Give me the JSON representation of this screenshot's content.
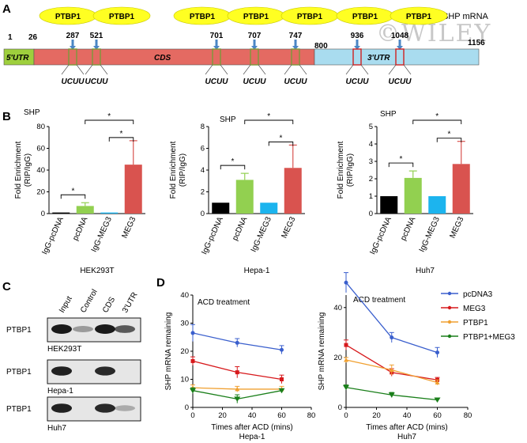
{
  "panel_a": {
    "letter": "A",
    "title": "SHP mRNA",
    "watermark": "©WILEY",
    "segments": [
      {
        "label": "5'UTR",
        "color": "#9ecf3d"
      },
      {
        "label": "CDS",
        "color": "#e46a62"
      },
      {
        "label": "3'UTR",
        "color": "#a9dcef"
      }
    ],
    "boundaries": [
      "1",
      "26",
      "800",
      "1156"
    ],
    "sites": [
      {
        "pos": "287",
        "motif": "UCUU",
        "region": "CDS"
      },
      {
        "pos": "521",
        "motif": "UCUU",
        "region": "CDS"
      },
      {
        "pos": "701",
        "motif": "UCUU",
        "region": "CDS"
      },
      {
        "pos": "707",
        "motif": "UCUU",
        "region": "CDS"
      },
      {
        "pos": "747",
        "motif": "UCUU",
        "region": "CDS"
      },
      {
        "pos": "936",
        "motif": "UCUU",
        "region": "3'UTR"
      },
      {
        "pos": "1048",
        "motif": "UCUU",
        "region": "3'UTR"
      }
    ],
    "protein_label": "PTBP1",
    "oval_color": "#ffff22"
  },
  "panel_b": {
    "letter": "B",
    "ylabel": "Fold Enrichment (RIP/IgG)",
    "categories": [
      "IgG-pcDNA",
      "pcDNA",
      "IgG-MEG3",
      "MEG3"
    ],
    "bar_colors": [
      "#000000",
      "#92d050",
      "#1cb4ee",
      "#d9534f"
    ],
    "sig": "*"
  },
  "panel_c": {
    "letter": "C",
    "lanes": [
      "Input",
      "Control",
      "CDS",
      "3'UTR"
    ],
    "row_label": "PTBP1",
    "cells": [
      "HEK293T",
      "Hepa-1",
      "Huh7"
    ],
    "bands": [
      [
        1.0,
        0.15,
        1.0,
        0.55
      ],
      [
        0.9,
        0.0,
        0.85,
        0.0
      ],
      [
        0.9,
        0.0,
        0.85,
        0.05
      ]
    ]
  },
  "panel_d": {
    "letter": "D",
    "annotation": "ACD treatment",
    "ylabel": "SHP mRNA remaining",
    "xlabel": "Times after ACD (mins)",
    "legend": [
      {
        "name": "pcDNA3",
        "color": "#3a5fcd"
      },
      {
        "name": "MEG3",
        "color": "#d7191c"
      },
      {
        "name": "PTBP1",
        "color": "#f0a030"
      },
      {
        "name": "PTBP1+MEG3",
        "color": "#1a7f1a"
      }
    ]
  },
  "chart_data": [
    {
      "type": "bar",
      "title": "SHP",
      "xlabel": "HEK293T",
      "ylabel": "Fold Enrichment (RIP/IgG)",
      "categories": [
        "IgG-pcDNA",
        "pcDNA",
        "IgG-MEG3",
        "MEG3"
      ],
      "values": [
        1,
        7,
        1,
        45
      ],
      "errors": [
        0,
        3,
        0,
        22
      ],
      "ylim": [
        0,
        80
      ],
      "yticks": [
        0,
        20,
        40,
        60,
        80
      ],
      "grid": false
    },
    {
      "type": "bar",
      "title": "SHP",
      "xlabel": "Hepa-1",
      "ylabel": "Fold Enrichment (RIP/IgG)",
      "categories": [
        "IgG-pcDNA",
        "pcDNA",
        "IgG-MEG3",
        "MEG3"
      ],
      "values": [
        1,
        3.1,
        1,
        4.2
      ],
      "errors": [
        0,
        0.6,
        0,
        2.1
      ],
      "ylim": [
        0,
        8
      ],
      "yticks": [
        0,
        2,
        4,
        6,
        8
      ],
      "grid": false
    },
    {
      "type": "bar",
      "title": "SHP",
      "xlabel": "Huh7",
      "ylabel": "Fold Enrichment (RIP/IgG)",
      "categories": [
        "IgG-pcDNA",
        "pcDNA",
        "IgG-MEG3",
        "MEG3"
      ],
      "values": [
        1,
        2.05,
        1,
        2.85
      ],
      "errors": [
        0,
        0.4,
        0,
        1.3
      ],
      "ylim": [
        0,
        5
      ],
      "yticks": [
        0,
        1,
        2,
        3,
        4,
        5
      ],
      "grid": false
    },
    {
      "type": "line",
      "xlabel": "Times after ACD (mins)",
      "subtitle": "Hepa-1",
      "ylabel": "SHP mRNA remaining",
      "x": [
        0,
        30,
        60
      ],
      "xlim": [
        0,
        80
      ],
      "xticks": [
        0,
        20,
        40,
        60,
        80
      ],
      "ylim": [
        0,
        40
      ],
      "yticks": [
        0,
        10,
        20,
        30,
        40
      ],
      "series": [
        {
          "name": "pcDNA3",
          "values": [
            26.5,
            23,
            20.5
          ],
          "errors": [
            3,
            1.5,
            1.5
          ]
        },
        {
          "name": "MEG3",
          "values": [
            16.5,
            12.5,
            10
          ],
          "errors": [
            1.5,
            2,
            1.5
          ]
        },
        {
          "name": "PTBP1",
          "values": [
            7,
            6.5,
            6.5
          ],
          "errors": [
            1,
            1,
            1
          ]
        },
        {
          "name": "PTBP1+MEG3",
          "values": [
            6,
            3,
            6
          ],
          "errors": [
            1,
            1.5,
            0.5
          ]
        }
      ]
    },
    {
      "type": "line",
      "xlabel": "Times after ACD (mins)",
      "subtitle": "Huh7",
      "ylabel": "SHP mRNA remaining",
      "x": [
        0,
        30,
        60
      ],
      "xlim": [
        0,
        80
      ],
      "xticks": [
        0,
        20,
        40,
        60,
        80
      ],
      "ylim": [
        0,
        45
      ],
      "yticks": [
        0,
        20,
        40
      ],
      "series": [
        {
          "name": "pcDNA3",
          "values": [
            50,
            28,
            22
          ],
          "errors": [
            4,
            2,
            2
          ]
        },
        {
          "name": "MEG3",
          "values": [
            25,
            14,
            11
          ],
          "errors": [
            2,
            1.5,
            1
          ]
        },
        {
          "name": "PTBP1",
          "values": [
            19,
            15,
            10
          ],
          "errors": [
            1,
            2,
            1
          ]
        },
        {
          "name": "PTBP1+MEG3",
          "values": [
            8,
            5,
            3
          ],
          "errors": [
            1,
            1,
            0.5
          ]
        }
      ]
    }
  ]
}
